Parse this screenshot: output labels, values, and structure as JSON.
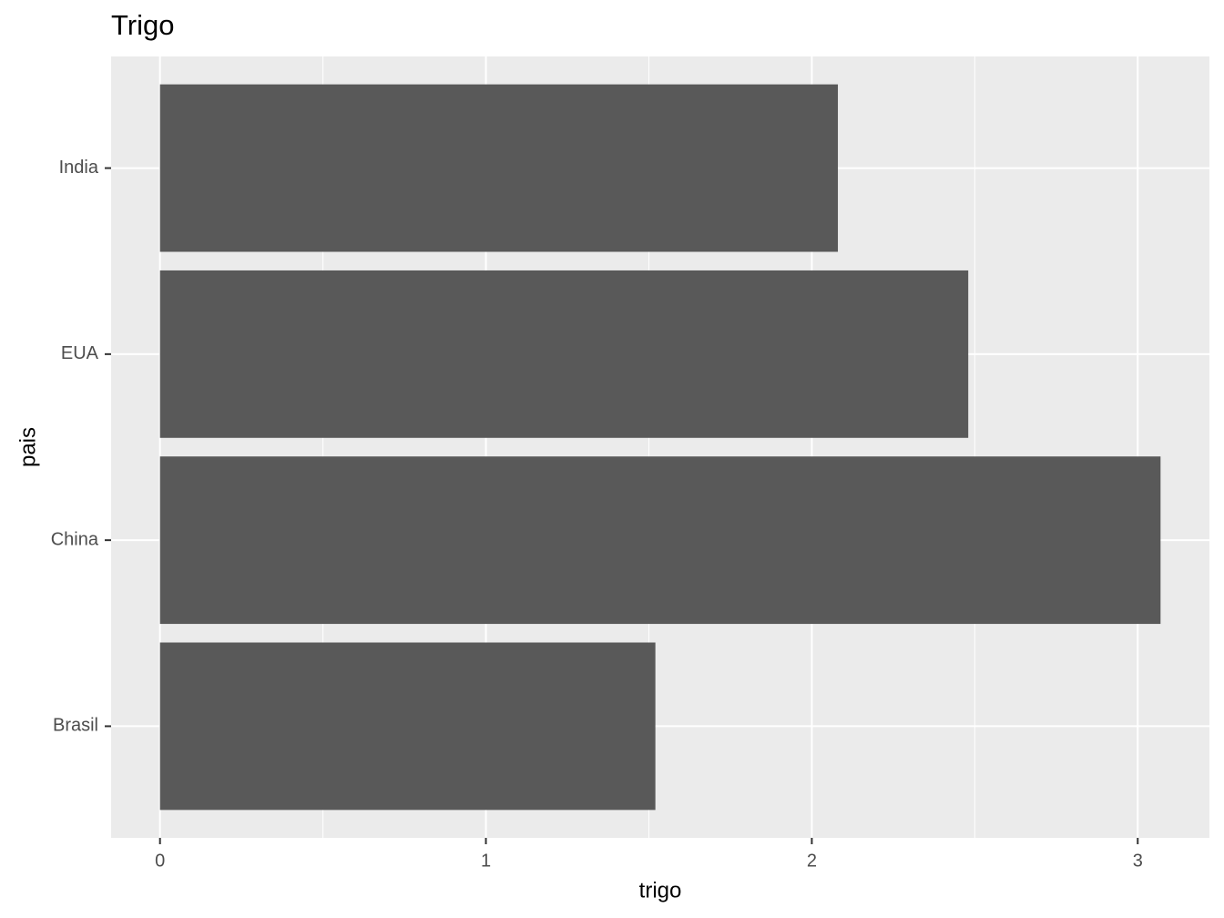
{
  "chart_data": {
    "type": "barh",
    "title": "Trigo",
    "x_label": "trigo",
    "y_label": "pais",
    "categories": [
      "Brasil",
      "China",
      "EUA",
      "India"
    ],
    "values": [
      1.52,
      3.07,
      2.48,
      2.08
    ],
    "color": "#595959",
    "xlim": [
      -0.15,
      3.22
    ],
    "xticks": [
      0,
      1,
      2,
      3
    ],
    "grid": true
  }
}
